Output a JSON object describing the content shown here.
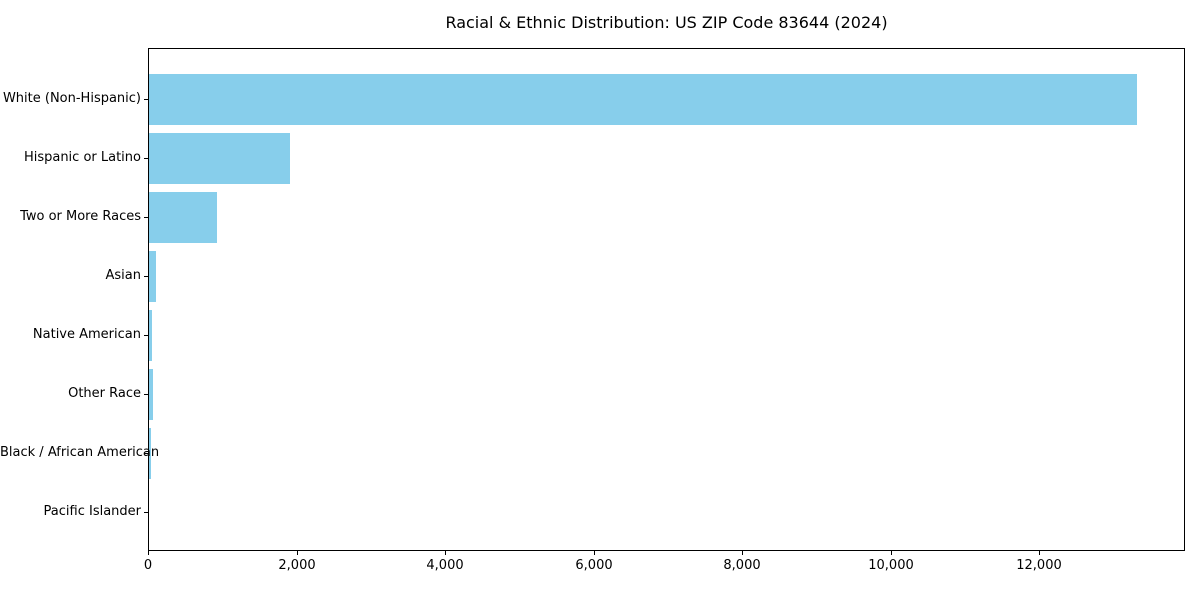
{
  "chart_data": {
    "type": "bar",
    "orientation": "horizontal",
    "title": "Racial & Ethnic Distribution: US ZIP Code 83644 (2024)",
    "categories": [
      "White (Non-Hispanic)",
      "Hispanic or Latino",
      "Two or More Races",
      "Asian",
      "Native American",
      "Other Race",
      "Black / African American",
      "Pacific Islander"
    ],
    "values": [
      13300,
      1900,
      915,
      94,
      45,
      55,
      28,
      0
    ],
    "xlabel": "",
    "ylabel": "",
    "xlim": [
      0,
      13966
    ],
    "x_ticks": [
      0,
      2000,
      4000,
      6000,
      8000,
      10000,
      12000
    ],
    "x_tick_labels": [
      "0",
      "2,000",
      "4,000",
      "6,000",
      "8,000",
      "10,000",
      "12,000"
    ],
    "bar_color": "#87CEEB",
    "grid": false,
    "legend": "none",
    "spines": "full-box"
  }
}
